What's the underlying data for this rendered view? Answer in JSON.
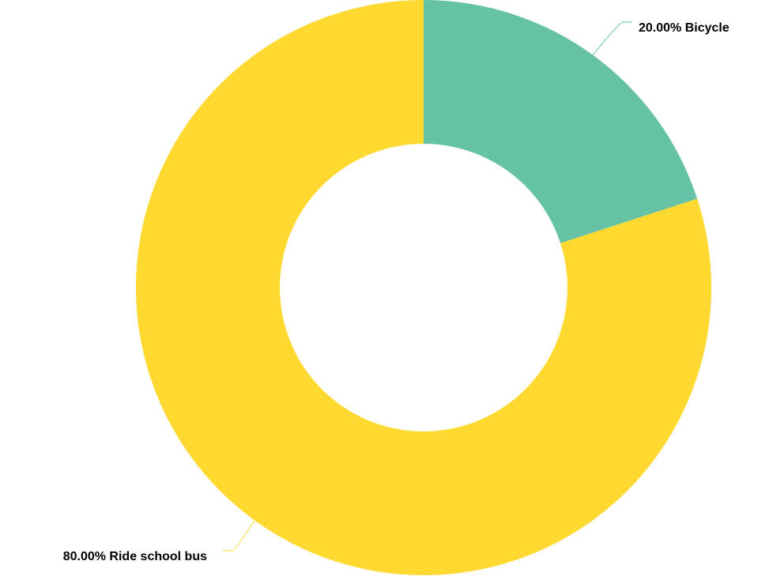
{
  "chart_data": {
    "type": "pie",
    "donut": true,
    "legend": "none",
    "slices": [
      {
        "name": "Bicycle",
        "value": 20.0,
        "label": "20.00% Bicycle",
        "color": "#66c2a5"
      },
      {
        "name": "Ride school bus",
        "value": 80.0,
        "label": "80.00% Ride school bus",
        "color": "#ffd92f"
      }
    ]
  }
}
